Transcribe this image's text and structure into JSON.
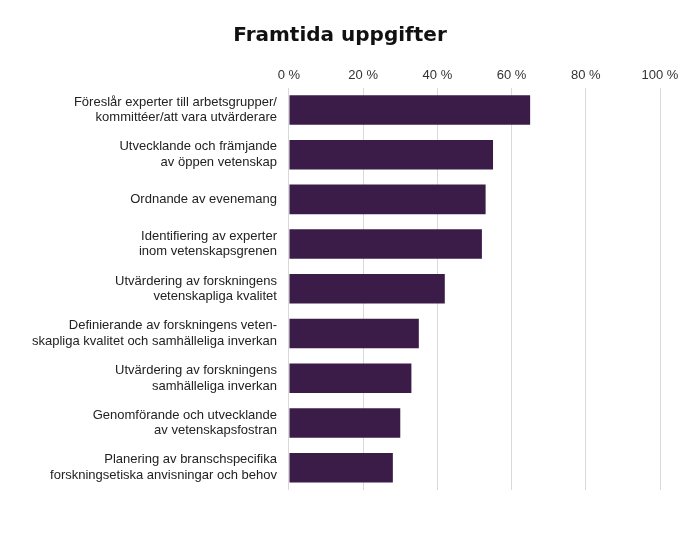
{
  "chart_data": {
    "type": "bar",
    "orientation": "horizontal",
    "title": "Framtida uppgifter",
    "categories": [
      [
        "Föreslår experter till arbetsgrupper/",
        "kommittéer/att vara utvärderare"
      ],
      [
        "Utvecklande och främjande",
        "av öppen vetenskap"
      ],
      [
        "Ordnande av evenemang"
      ],
      [
        "Identifiering av experter",
        "inom vetenskapsgrenen"
      ],
      [
        "Utvärdering av forskningens",
        "vetenskapliga kvalitet"
      ],
      [
        "Definierande av forskningens veten-",
        "skapliga kvalitet och samhälleliga inverkan"
      ],
      [
        "Utvärdering av forskningens",
        "samhälleliga inverkan"
      ],
      [
        "Genomförande och utvecklande",
        "av vetenskapsfostran"
      ],
      [
        "Planering av branschspecifika",
        "forskningsetiska anvisningar och behov"
      ]
    ],
    "values": [
      65,
      55,
      53,
      52,
      42,
      35,
      33,
      30,
      28
    ],
    "color": "#3b1c48",
    "xlim": [
      0,
      100
    ],
    "xticks": [
      {
        "value": 0,
        "label": "0 %"
      },
      {
        "value": 20,
        "label": "20 %"
      },
      {
        "value": 40,
        "label": "40 %"
      },
      {
        "value": 60,
        "label": "60 %"
      },
      {
        "value": 80,
        "label": "80 %"
      },
      {
        "value": 100,
        "label": "100 %"
      }
    ],
    "grid": true
  }
}
